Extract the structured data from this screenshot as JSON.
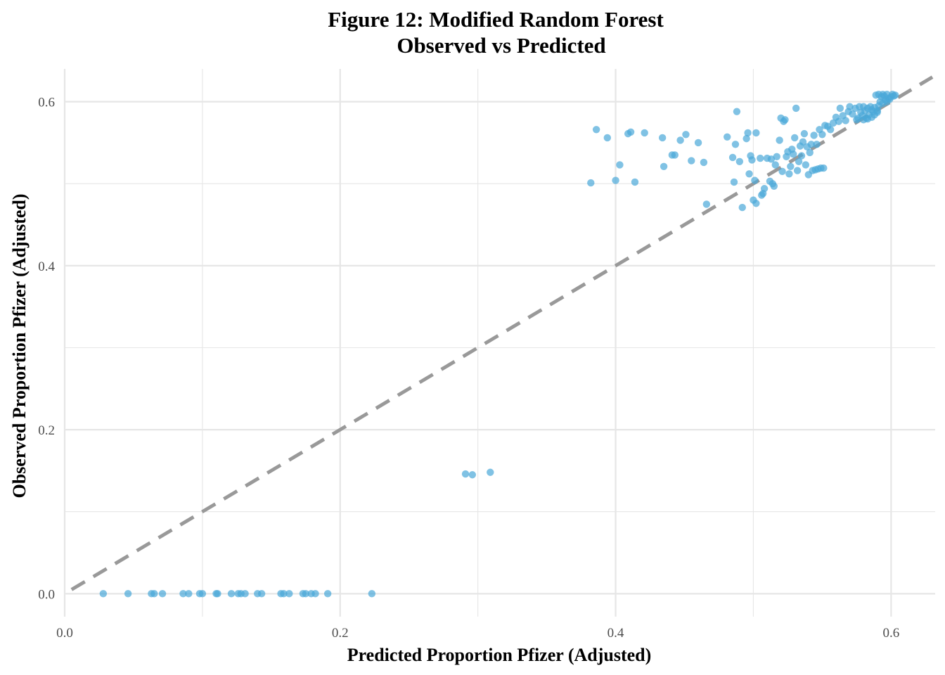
{
  "chart_data": {
    "type": "scatter",
    "title": "Figure 12: Modified Random Forest",
    "subtitle": "Observed vs Predicted",
    "xlabel": "Predicted Proportion Pfizer (Adjusted)",
    "ylabel": "Observed Proportion Pfizer (Adjusted)",
    "xlim": [
      0.0,
      0.632
    ],
    "ylim": [
      -0.028,
      0.64
    ],
    "x_ticks": [
      "0.0",
      "0.2",
      "0.4",
      "0.6"
    ],
    "y_ticks": [
      "0.0",
      "0.2",
      "0.4",
      "0.6"
    ],
    "grid": true,
    "colors": {
      "points": "#4aa8d8",
      "reference_line": "#999999",
      "grid": "#e6e6e6"
    },
    "reference_line": {
      "type": "y=x",
      "style": "dashed"
    },
    "points": [
      [
        0.028,
        0.0
      ],
      [
        0.046,
        0.0
      ],
      [
        0.063,
        0.0
      ],
      [
        0.065,
        0.0
      ],
      [
        0.071,
        0.0
      ],
      [
        0.086,
        0.0
      ],
      [
        0.09,
        0.0
      ],
      [
        0.098,
        0.0
      ],
      [
        0.1,
        0.0
      ],
      [
        0.11,
        0.0
      ],
      [
        0.111,
        0.0
      ],
      [
        0.121,
        0.0
      ],
      [
        0.126,
        0.0
      ],
      [
        0.128,
        0.0
      ],
      [
        0.131,
        0.0
      ],
      [
        0.14,
        0.0
      ],
      [
        0.143,
        0.0
      ],
      [
        0.157,
        0.0
      ],
      [
        0.159,
        0.0
      ],
      [
        0.163,
        0.0
      ],
      [
        0.173,
        0.0
      ],
      [
        0.175,
        0.0
      ],
      [
        0.179,
        0.0
      ],
      [
        0.182,
        0.0
      ],
      [
        0.191,
        0.0
      ],
      [
        0.223,
        0.0
      ],
      [
        0.291,
        0.146
      ],
      [
        0.296,
        0.145
      ],
      [
        0.309,
        0.148
      ],
      [
        0.382,
        0.501
      ],
      [
        0.386,
        0.566
      ],
      [
        0.394,
        0.556
      ],
      [
        0.4,
        0.504
      ],
      [
        0.403,
        0.523
      ],
      [
        0.409,
        0.561
      ],
      [
        0.411,
        0.563
      ],
      [
        0.414,
        0.502
      ],
      [
        0.421,
        0.562
      ],
      [
        0.434,
        0.556
      ],
      [
        0.435,
        0.521
      ],
      [
        0.441,
        0.535
      ],
      [
        0.443,
        0.535
      ],
      [
        0.447,
        0.553
      ],
      [
        0.451,
        0.56
      ],
      [
        0.455,
        0.528
      ],
      [
        0.46,
        0.55
      ],
      [
        0.464,
        0.526
      ],
      [
        0.466,
        0.475
      ],
      [
        0.481,
        0.557
      ],
      [
        0.485,
        0.532
      ],
      [
        0.486,
        0.502
      ],
      [
        0.487,
        0.548
      ],
      [
        0.488,
        0.588
      ],
      [
        0.49,
        0.527
      ],
      [
        0.492,
        0.471
      ],
      [
        0.495,
        0.555
      ],
      [
        0.496,
        0.562
      ],
      [
        0.497,
        0.512
      ],
      [
        0.498,
        0.534
      ],
      [
        0.499,
        0.529
      ],
      [
        0.5,
        0.48
      ],
      [
        0.501,
        0.504
      ],
      [
        0.502,
        0.562
      ],
      [
        0.502,
        0.476
      ],
      [
        0.505,
        0.531
      ],
      [
        0.506,
        0.486
      ],
      [
        0.507,
        0.488
      ],
      [
        0.508,
        0.494
      ],
      [
        0.51,
        0.531
      ],
      [
        0.512,
        0.503
      ],
      [
        0.513,
        0.53
      ],
      [
        0.514,
        0.5
      ],
      [
        0.515,
        0.497
      ],
      [
        0.516,
        0.523
      ],
      [
        0.517,
        0.533
      ],
      [
        0.519,
        0.553
      ],
      [
        0.52,
        0.58
      ],
      [
        0.521,
        0.515
      ],
      [
        0.522,
        0.576
      ],
      [
        0.523,
        0.578
      ],
      [
        0.524,
        0.533
      ],
      [
        0.525,
        0.539
      ],
      [
        0.526,
        0.512
      ],
      [
        0.527,
        0.521
      ],
      [
        0.528,
        0.542
      ],
      [
        0.529,
        0.536
      ],
      [
        0.53,
        0.556
      ],
      [
        0.531,
        0.592
      ],
      [
        0.532,
        0.516
      ],
      [
        0.533,
        0.527
      ],
      [
        0.534,
        0.546
      ],
      [
        0.535,
        0.534
      ],
      [
        0.536,
        0.551
      ],
      [
        0.537,
        0.561
      ],
      [
        0.538,
        0.523
      ],
      [
        0.539,
        0.545
      ],
      [
        0.54,
        0.511
      ],
      [
        0.541,
        0.538
      ],
      [
        0.542,
        0.548
      ],
      [
        0.543,
        0.516
      ],
      [
        0.544,
        0.559
      ],
      [
        0.545,
        0.517
      ],
      [
        0.546,
        0.548
      ],
      [
        0.547,
        0.518
      ],
      [
        0.548,
        0.566
      ],
      [
        0.549,
        0.519
      ],
      [
        0.55,
        0.56
      ],
      [
        0.551,
        0.519
      ],
      [
        0.552,
        0.571
      ],
      [
        0.554,
        0.57
      ],
      [
        0.556,
        0.566
      ],
      [
        0.558,
        0.574
      ],
      [
        0.56,
        0.581
      ],
      [
        0.562,
        0.576
      ],
      [
        0.563,
        0.592
      ],
      [
        0.565,
        0.583
      ],
      [
        0.567,
        0.577
      ],
      [
        0.569,
        0.588
      ],
      [
        0.57,
        0.594
      ],
      [
        0.572,
        0.585
      ],
      [
        0.574,
        0.592
      ],
      [
        0.575,
        0.578
      ],
      [
        0.576,
        0.58
      ],
      [
        0.577,
        0.594
      ],
      [
        0.578,
        0.587
      ],
      [
        0.579,
        0.583
      ],
      [
        0.58,
        0.594
      ],
      [
        0.581,
        0.589
      ],
      [
        0.582,
        0.58
      ],
      [
        0.583,
        0.592
      ],
      [
        0.584,
        0.584
      ],
      [
        0.585,
        0.594
      ],
      [
        0.586,
        0.59
      ],
      [
        0.587,
        0.588
      ],
      [
        0.588,
        0.593
      ],
      [
        0.589,
        0.608
      ],
      [
        0.59,
        0.589
      ],
      [
        0.591,
        0.595
      ],
      [
        0.592,
        0.6
      ],
      [
        0.593,
        0.606
      ],
      [
        0.594,
        0.598
      ],
      [
        0.595,
        0.607
      ],
      [
        0.596,
        0.602
      ],
      [
        0.597,
        0.6
      ],
      [
        0.598,
        0.604
      ],
      [
        0.599,
        0.603
      ],
      [
        0.6,
        0.606
      ],
      [
        0.601,
        0.609
      ],
      [
        0.602,
        0.607
      ],
      [
        0.603,
        0.608
      ],
      [
        0.591,
        0.609
      ],
      [
        0.594,
        0.609
      ],
      [
        0.597,
        0.609
      ],
      [
        0.58,
        0.578
      ],
      [
        0.583,
        0.579
      ],
      [
        0.586,
        0.581
      ],
      [
        0.588,
        0.584
      ],
      [
        0.59,
        0.587
      ]
    ]
  }
}
